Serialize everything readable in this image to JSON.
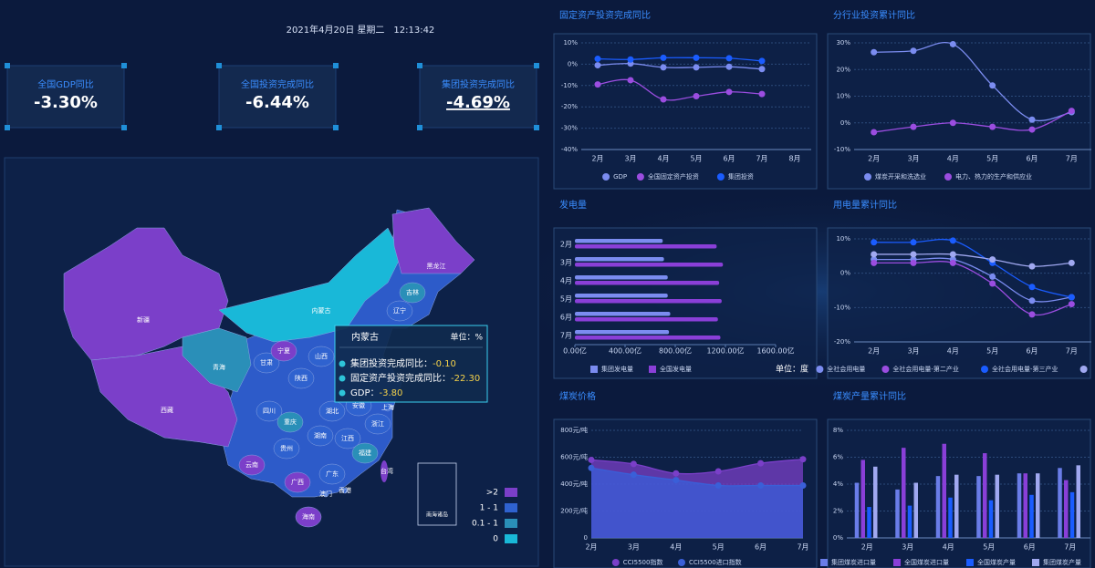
{
  "header": {
    "date": "2021年4月20日 星期二　12:13:42"
  },
  "kpis": [
    {
      "label": "全国GDP同比",
      "value": "-3.30%"
    },
    {
      "label": "全国投资完成同比",
      "value": "-6.44%"
    },
    {
      "label": "集团投资完成同比",
      "value": "-4.69%"
    }
  ],
  "map": {
    "provinces": [
      {
        "name": "新疆",
        "color": "#7b3fc9"
      },
      {
        "name": "西藏",
        "color": "#7b3fc9"
      },
      {
        "name": "青海",
        "color": "#2a8fb8"
      },
      {
        "name": "甘肃",
        "color": "#2f62cf"
      },
      {
        "name": "内蒙古",
        "color": "#19b8d8"
      },
      {
        "name": "黑龙江",
        "color": "#7b3fc9"
      },
      {
        "name": "吉林",
        "color": "#2a8fb8"
      },
      {
        "name": "辽宁",
        "color": "#2f62cf"
      },
      {
        "name": "宁夏",
        "color": "#7b3fc9"
      },
      {
        "name": "山西",
        "color": "#2f62cf"
      },
      {
        "name": "陕西",
        "color": "#2f62cf"
      },
      {
        "name": "四川",
        "color": "#2f62cf"
      },
      {
        "name": "重庆",
        "color": "#2a8fb8"
      },
      {
        "name": "贵州",
        "color": "#2f62cf"
      },
      {
        "name": "云南",
        "color": "#7b3fc9"
      },
      {
        "name": "广西",
        "color": "#7b3fc9"
      },
      {
        "name": "广东",
        "color": "#2f62cf"
      },
      {
        "name": "湖南",
        "color": "#2f62cf"
      },
      {
        "name": "湖北",
        "color": "#2f62cf"
      },
      {
        "name": "江西",
        "color": "#2f62cf"
      },
      {
        "name": "福建",
        "color": "#2a8fb8"
      },
      {
        "name": "浙江",
        "color": "#2f62cf"
      },
      {
        "name": "上海",
        "color": "#2f62cf"
      },
      {
        "name": "安徽",
        "color": "#2f62cf"
      },
      {
        "name": "台湾",
        "color": "#7b3fc9"
      },
      {
        "name": "香港",
        "color": "#2f62cf"
      },
      {
        "name": "澳门",
        "color": "#2f62cf"
      },
      {
        "name": "海南",
        "color": "#7b3fc9"
      }
    ],
    "inset": "南海诸岛",
    "tooltip": {
      "title": "内蒙古",
      "unit": "单位：%",
      "rows": [
        {
          "label": "集团投资完成同比：",
          "value": "-0.10"
        },
        {
          "label": "固定资产投资完成同比：",
          "value": "-22.30"
        },
        {
          "label": "GDP：",
          "value": "-3.80"
        }
      ]
    },
    "legend": [
      {
        "label": ">2",
        "color": "#7b3fc9"
      },
      {
        "label": "1 - 1",
        "color": "#2f62cf"
      },
      {
        "label": "0.1 - 1",
        "color": "#2a8fb8"
      },
      {
        "label": "0",
        "color": "#19b8d8"
      }
    ]
  },
  "chart_data": [
    {
      "type": "line",
      "title": "固定资产投资完成同比",
      "categories": [
        "2月",
        "3月",
        "4月",
        "5月",
        "6月",
        "7月",
        "8月"
      ],
      "ylim": [
        -40,
        10
      ],
      "yticks": [
        {
          "value": -40,
          "label": "-40%"
        },
        {
          "value": -30,
          "label": "-30%"
        },
        {
          "value": -20,
          "label": "-20%"
        },
        {
          "value": -10,
          "label": "-10%"
        },
        {
          "value": 0,
          "label": "0%"
        },
        {
          "value": 10,
          "label": "10%"
        }
      ],
      "grid": true,
      "series": [
        {
          "name": "GDP",
          "color": "#7b8cf0",
          "values": [
            -0.5,
            0.3,
            -1.5,
            -1.5,
            -1.2,
            -2.3,
            null
          ]
        },
        {
          "name": "全国固定资产投资",
          "color": "#9b4de0",
          "values": [
            -9.5,
            -7.5,
            -16.5,
            -15,
            -13,
            -14,
            null
          ]
        },
        {
          "name": "集团投资",
          "color": "#1a5cff",
          "values": [
            2.5,
            2.2,
            3,
            3,
            2.8,
            1.5,
            null
          ]
        }
      ]
    },
    {
      "type": "line",
      "title": "分行业投资累计同比",
      "categories": [
        "2月",
        "3月",
        "4月",
        "5月",
        "6月",
        "7月"
      ],
      "ylim": [
        -10,
        30
      ],
      "yticks": [
        {
          "value": -10,
          "label": "-10%"
        },
        {
          "value": 0,
          "label": "0%"
        },
        {
          "value": 10,
          "label": "10%"
        },
        {
          "value": 20,
          "label": "20%"
        },
        {
          "value": 30,
          "label": "30%"
        }
      ],
      "grid": true,
      "series": [
        {
          "name": "煤炭开采和洗选业",
          "color": "#7b8cf0",
          "values": [
            26.5,
            27,
            29.5,
            14,
            1.2,
            4
          ]
        },
        {
          "name": "电力、热力的生产和供应业",
          "color": "#9b4de0",
          "values": [
            -3.5,
            -1.5,
            0,
            -1.5,
            -2.5,
            4.5
          ]
        }
      ]
    },
    {
      "type": "hbar",
      "title": "发电量",
      "categories": [
        "2月",
        "3月",
        "4月",
        "5月",
        "6月",
        "7月"
      ],
      "unit": "单位：度",
      "xlim": [
        0,
        1600
      ],
      "xticks": [
        {
          "value": 0,
          "label": "0.00亿"
        },
        {
          "value": 400,
          "label": "400.00亿"
        },
        {
          "value": 800,
          "label": "800.00亿"
        },
        {
          "value": 1200,
          "label": "1200.00亿"
        },
        {
          "value": 1600,
          "label": "1600.00亿"
        }
      ],
      "series": [
        {
          "name": "集团发电量",
          "color": "#7b8cf0",
          "values": [
            700,
            710,
            740,
            740,
            760,
            750
          ]
        },
        {
          "name": "全国发电量",
          "color": "#8a3fd8",
          "values": [
            1130,
            1180,
            1150,
            1170,
            1140,
            1160
          ]
        }
      ]
    },
    {
      "type": "line",
      "title": "用电量累计同比",
      "categories": [
        "2月",
        "3月",
        "4月",
        "5月",
        "6月",
        "7月"
      ],
      "ylim": [
        -20,
        10
      ],
      "yticks": [
        {
          "value": -20,
          "label": "-20%"
        },
        {
          "value": -10,
          "label": "-10%"
        },
        {
          "value": 0,
          "label": "0%"
        },
        {
          "value": 10,
          "label": "10%"
        }
      ],
      "grid": true,
      "series": [
        {
          "name": "全社会用电量",
          "color": "#7b8cf0",
          "values": [
            4,
            4,
            4,
            -1,
            -8,
            -7
          ]
        },
        {
          "name": "全社会用电量-第二产业",
          "color": "#9b4de0",
          "values": [
            3,
            3,
            3,
            -3,
            -12,
            -9
          ]
        },
        {
          "name": "全社会用电量-第三产业",
          "color": "#1a5cff",
          "values": [
            9,
            9,
            9.5,
            3,
            -4,
            -7
          ]
        },
        {
          "color": "#a0a8f0",
          "values": [
            5.5,
            5.5,
            5.5,
            4,
            2,
            3
          ]
        }
      ]
    },
    {
      "type": "area",
      "title": "煤炭价格",
      "categories": [
        "2月",
        "3月",
        "4月",
        "5月",
        "6月",
        "7月"
      ],
      "ylim": [
        0,
        800
      ],
      "yticks": [
        0,
        {
          "value": 200,
          "label": "200元/吨"
        },
        {
          "value": 400,
          "label": "400元/吨"
        },
        {
          "value": 600,
          "label": "600元/吨"
        },
        {
          "value": 800,
          "label": "800元/吨"
        }
      ],
      "grid": true,
      "series": [
        {
          "name": "CCI5500指数",
          "color": "#7a3fc8",
          "values": [
            580,
            550,
            480,
            495,
            555,
            585
          ]
        },
        {
          "name": "CCI5500进口指数",
          "color": "#3a5fd8",
          "values": [
            520,
            470,
            430,
            390,
            390,
            390
          ]
        }
      ]
    },
    {
      "type": "bar",
      "title": "煤炭产量累计同比",
      "categories": [
        "2月",
        "3月",
        "4月",
        "5月",
        "6月",
        "7月"
      ],
      "ylim": [
        0,
        8
      ],
      "yticks": [
        {
          "value": 0,
          "label": "0%"
        },
        {
          "value": 2,
          "label": "2%"
        },
        {
          "value": 4,
          "label": "4%"
        },
        {
          "value": 6,
          "label": "6%"
        },
        {
          "value": 8,
          "label": "8%"
        }
      ],
      "grid": true,
      "series": [
        {
          "name": "集团煤炭进口量",
          "color": "#6a7de8",
          "values": [
            4.1,
            3.6,
            4.6,
            4.6,
            4.8,
            5.2
          ]
        },
        {
          "name": "全国煤炭进口量",
          "color": "#8a3fd8",
          "values": [
            5.8,
            6.7,
            7,
            6.3,
            4.8,
            4.3
          ]
        },
        {
          "name": "全国煤炭产量",
          "color": "#1a5cff",
          "values": [
            2.3,
            2.4,
            3.0,
            2.8,
            3.2,
            3.4
          ]
        },
        {
          "name": "集团煤炭产量",
          "color": "#a0a8f0",
          "values": [
            5.3,
            4.1,
            4.7,
            4.7,
            4.8,
            5.4
          ]
        }
      ]
    }
  ]
}
